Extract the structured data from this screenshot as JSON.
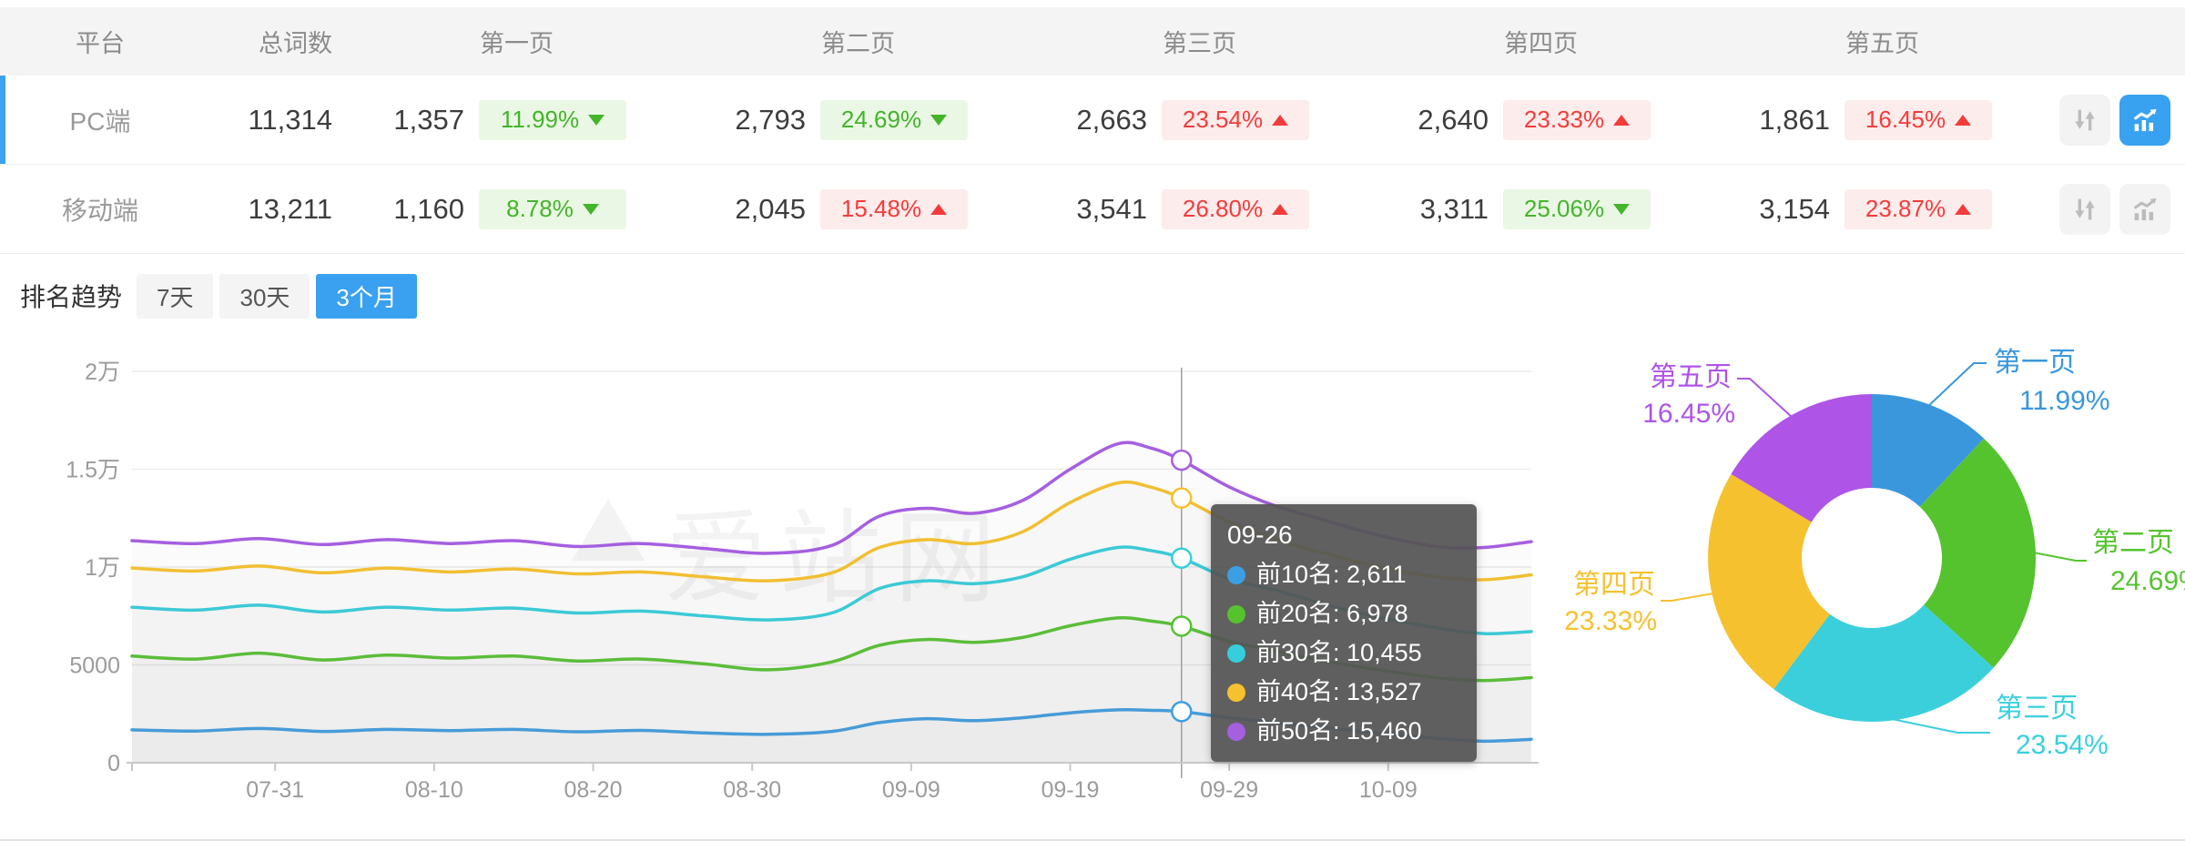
{
  "table": {
    "headers": {
      "platform": "平台",
      "total": "总词数",
      "pages": [
        "第一页",
        "第二页",
        "第三页",
        "第四页",
        "第五页"
      ]
    },
    "rows": [
      {
        "platform": "PC端",
        "total": "11,314",
        "selected": true,
        "chart_active": true,
        "pages": [
          {
            "count": "1,357",
            "pct": "11.99%",
            "dir": "down",
            "trend": "good"
          },
          {
            "count": "2,793",
            "pct": "24.69%",
            "dir": "down",
            "trend": "good"
          },
          {
            "count": "2,663",
            "pct": "23.54%",
            "dir": "up",
            "trend": "bad"
          },
          {
            "count": "2,640",
            "pct": "23.33%",
            "dir": "up",
            "trend": "bad"
          },
          {
            "count": "1,861",
            "pct": "16.45%",
            "dir": "up",
            "trend": "bad"
          }
        ]
      },
      {
        "platform": "移动端",
        "total": "13,211",
        "selected": false,
        "chart_active": false,
        "pages": [
          {
            "count": "1,160",
            "pct": "8.78%",
            "dir": "down",
            "trend": "good"
          },
          {
            "count": "2,045",
            "pct": "15.48%",
            "dir": "up",
            "trend": "bad"
          },
          {
            "count": "3,541",
            "pct": "26.80%",
            "dir": "up",
            "trend": "bad"
          },
          {
            "count": "3,311",
            "pct": "25.06%",
            "dir": "down",
            "trend": "good"
          },
          {
            "count": "3,154",
            "pct": "23.87%",
            "dir": "up",
            "trend": "bad"
          }
        ]
      }
    ]
  },
  "trend": {
    "title": "排名趋势",
    "tabs": [
      {
        "label": "7天",
        "active": false
      },
      {
        "label": "30天",
        "active": false
      },
      {
        "label": "3个月",
        "active": true
      }
    ]
  },
  "tooltip": {
    "date": "09-26",
    "items": [
      {
        "label": "前10名",
        "value": "2,611",
        "color": "#3B9FE4"
      },
      {
        "label": "前20名",
        "value": "6,978",
        "color": "#55C32E"
      },
      {
        "label": "前30名",
        "value": "10,455",
        "color": "#36CEDC"
      },
      {
        "label": "前40名",
        "value": "13,527",
        "color": "#F5C12E"
      },
      {
        "label": "前50名",
        "value": "15,460",
        "color": "#A55FE0"
      }
    ]
  },
  "watermark": "爱站网",
  "accent_color": "#39A1F0",
  "chart_data": [
    {
      "type": "line",
      "title": "排名趋势 (3个月)",
      "grid": true,
      "legend_position": "none",
      "x": {
        "ticks": [
          "07-31",
          "08-10",
          "08-20",
          "08-30",
          "09-09",
          "09-19",
          "09-29",
          "10-09"
        ],
        "tick_days": [
          9,
          19,
          29,
          39,
          49,
          59,
          69,
          79
        ],
        "domain_days": [
          0,
          88
        ]
      },
      "y": {
        "ticks": [
          "0",
          "5000",
          "1万",
          "1.5万",
          "2万"
        ],
        "values": [
          0,
          5000,
          10000,
          15000,
          20000
        ],
        "range": [
          0,
          20000
        ]
      },
      "sample_days": [
        0,
        4,
        8,
        12,
        16,
        20,
        24,
        28,
        32,
        36,
        40,
        44,
        47,
        50,
        53,
        56,
        59,
        62,
        64,
        66,
        69,
        72,
        75,
        78,
        82,
        85,
        88
      ],
      "series": [
        {
          "name": "前10名",
          "color": "#3B9FE4",
          "values": [
            1680,
            1620,
            1750,
            1600,
            1700,
            1640,
            1700,
            1580,
            1650,
            1520,
            1450,
            1600,
            2050,
            2250,
            2150,
            2300,
            2550,
            2700,
            2680,
            2611,
            2300,
            2050,
            1800,
            1550,
            1250,
            1100,
            1200
          ]
        },
        {
          "name": "前20名",
          "color": "#55C32E",
          "values": [
            5450,
            5300,
            5600,
            5250,
            5500,
            5350,
            5450,
            5200,
            5300,
            5050,
            4750,
            5150,
            6000,
            6300,
            6150,
            6400,
            7000,
            7400,
            7250,
            6978,
            6200,
            5700,
            5200,
            4800,
            4350,
            4200,
            4350
          ]
        },
        {
          "name": "前30名",
          "color": "#36CEDC",
          "values": [
            7950,
            7800,
            8050,
            7700,
            7950,
            7800,
            7900,
            7650,
            7750,
            7500,
            7300,
            7650,
            8900,
            9300,
            9150,
            9500,
            10400,
            11000,
            10850,
            10455,
            9400,
            8800,
            8100,
            7500,
            6900,
            6600,
            6700
          ]
        },
        {
          "name": "前40名",
          "color": "#F5C12E",
          "values": [
            9950,
            9800,
            10050,
            9700,
            9950,
            9750,
            9900,
            9650,
            9750,
            9500,
            9300,
            9700,
            11000,
            11400,
            11200,
            11800,
            13300,
            14300,
            14100,
            13527,
            12300,
            11400,
            10700,
            10100,
            9500,
            9350,
            9600
          ]
        },
        {
          "name": "前50名",
          "color": "#A55FE0",
          "values": [
            11350,
            11200,
            11450,
            11150,
            11400,
            11200,
            11350,
            11050,
            11200,
            10950,
            10700,
            11100,
            12600,
            13000,
            12750,
            13400,
            15000,
            16300,
            16100,
            15460,
            14100,
            13100,
            12400,
            11700,
            11050,
            11000,
            11300
          ]
        }
      ],
      "crosshair": {
        "date": "09-26",
        "day": 66,
        "values": [
          2611,
          6978,
          10455,
          13527,
          15460
        ]
      }
    },
    {
      "type": "donut",
      "labels": [
        "第一页",
        "第二页",
        "第三页",
        "第四页",
        "第五页"
      ],
      "values": [
        11.99,
        24.69,
        23.54,
        23.33,
        16.45
      ],
      "display": [
        "11.99%",
        "24.69%",
        "23.54%",
        "23.33%",
        "16.45%"
      ],
      "colors": [
        "#3A97DC",
        "#55C32E",
        "#3BCFDC",
        "#F5C12E",
        "#AE54E6"
      ],
      "start_angle": "top",
      "direction": "clockwise"
    }
  ]
}
